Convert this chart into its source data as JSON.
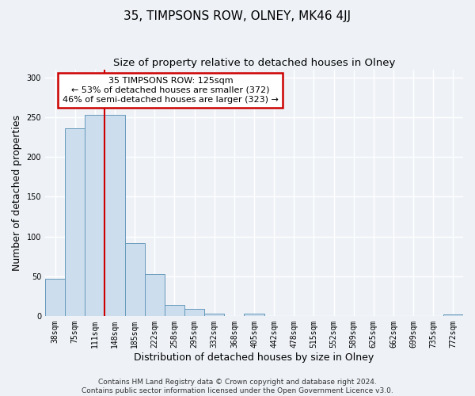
{
  "title": "35, TIMPSONS ROW, OLNEY, MK46 4JJ",
  "subtitle": "Size of property relative to detached houses in Olney",
  "xlabel": "Distribution of detached houses by size in Olney",
  "ylabel": "Number of detached properties",
  "bin_labels": [
    "38sqm",
    "75sqm",
    "111sqm",
    "148sqm",
    "185sqm",
    "222sqm",
    "258sqm",
    "295sqm",
    "332sqm",
    "368sqm",
    "405sqm",
    "442sqm",
    "478sqm",
    "515sqm",
    "552sqm",
    "589sqm",
    "625sqm",
    "662sqm",
    "699sqm",
    "735sqm",
    "772sqm"
  ],
  "bar_heights": [
    47,
    236,
    253,
    253,
    92,
    53,
    14,
    9,
    3,
    0,
    3,
    0,
    0,
    0,
    0,
    0,
    0,
    0,
    0,
    0,
    2
  ],
  "bar_color": "#ccdded",
  "bar_edge_color": "#6699bb",
  "vline_color": "#cc0000",
  "annotation_text": "35 TIMPSONS ROW: 125sqm\n← 53% of detached houses are smaller (372)\n46% of semi-detached houses are larger (323) →",
  "annotation_box_color": "white",
  "annotation_box_edge_color": "#cc0000",
  "ylim": [
    0,
    310
  ],
  "yticks": [
    0,
    50,
    100,
    150,
    200,
    250,
    300
  ],
  "footer_line1": "Contains HM Land Registry data © Crown copyright and database right 2024.",
  "footer_line2": "Contains public sector information licensed under the Open Government Licence v3.0.",
  "background_color": "#eef2f7",
  "grid_color": "white",
  "title_fontsize": 11,
  "subtitle_fontsize": 9.5,
  "axis_label_fontsize": 9,
  "tick_fontsize": 7,
  "annotation_fontsize": 8,
  "footer_fontsize": 6.5
}
